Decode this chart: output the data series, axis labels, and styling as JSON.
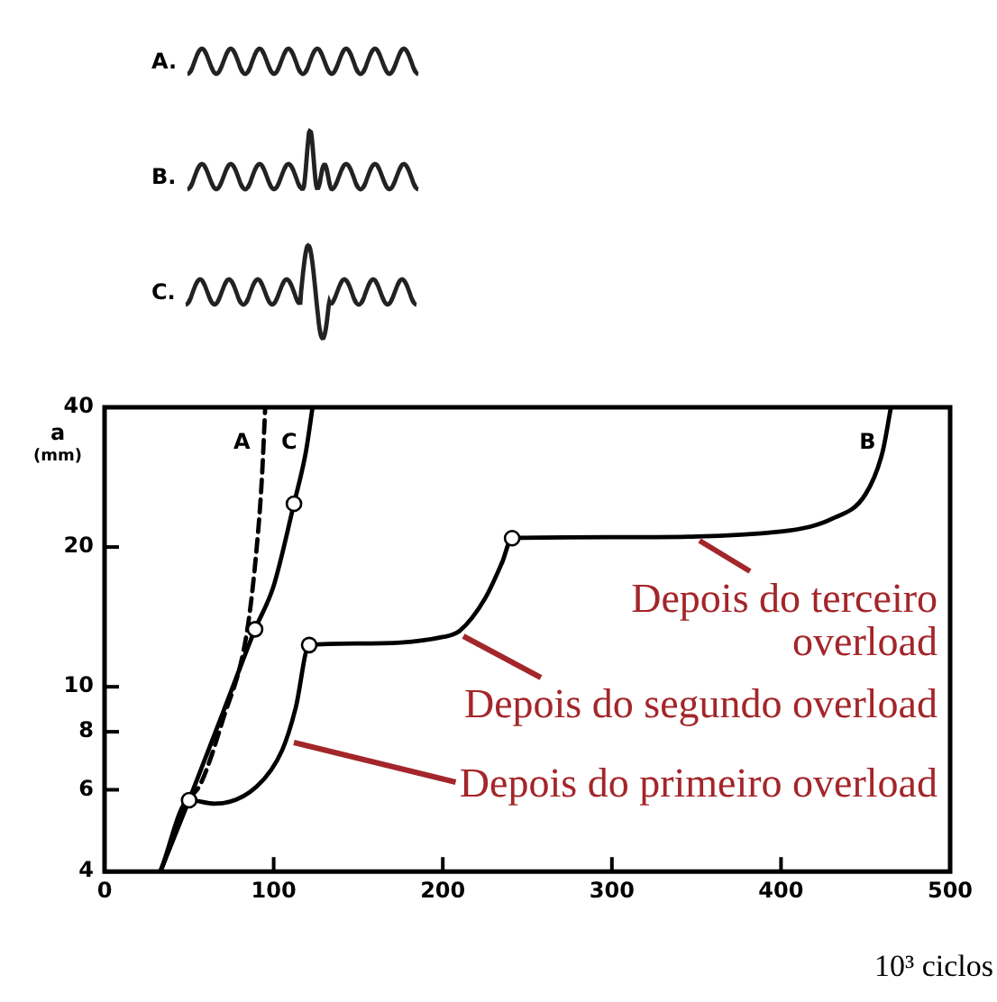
{
  "chart_data": {
    "type": "line",
    "xlabel": "10³ ciclos",
    "ylabel": "a (mm)",
    "log": "y",
    "xlim": [
      0,
      500
    ],
    "xticks": [
      0,
      100,
      200,
      300,
      400,
      500
    ],
    "ylim": [
      4,
      40
    ],
    "yticks": [
      4,
      6,
      8,
      10,
      20,
      40
    ],
    "grid": false,
    "legend": false,
    "marker": "none",
    "series": [
      {
        "name": "A",
        "color": "#000000",
        "line_style": "dashed",
        "x": [
          33,
          50,
          57,
          70,
          84,
          90,
          93,
          95
        ],
        "values": [
          4,
          5.7,
          6.2,
          8.5,
          13,
          20,
          28,
          40
        ]
      },
      {
        "name": "B",
        "color": "#000000",
        "line_style": "solid",
        "x": [
          33,
          50,
          65,
          90,
          105,
          113,
          121,
          150,
          200,
          210,
          225,
          235,
          241,
          300,
          400,
          430,
          450,
          460,
          465
        ],
        "values": [
          4,
          5.7,
          5.6,
          6.1,
          7.3,
          9,
          12.3,
          12.4,
          12.8,
          13.2,
          15.5,
          18.5,
          20.9,
          21,
          21.6,
          23,
          26,
          32,
          40
        ]
      },
      {
        "name": "C",
        "color": "#000000",
        "line_style": "solid",
        "x": [
          33,
          50,
          70,
          89,
          100,
          112,
          119,
          123
        ],
        "values": [
          4,
          5.7,
          8.8,
          13.3,
          16.5,
          24.8,
          32,
          40
        ]
      },
      {
        "type": "scatter",
        "marker": "circle",
        "color": "#ffffff",
        "x": [
          50,
          89,
          112,
          121,
          241
        ],
        "values": [
          5.7,
          13.3,
          24.8,
          12.3,
          20.9
        ]
      }
    ],
    "annotations": [
      "A.",
      "B.",
      "C.",
      {
        "text": "Depois do terceiro overload",
        "x": 350,
        "y": 21.3
      },
      {
        "text": "Depois do segundo overload",
        "x": 210,
        "y": 13.2
      },
      {
        "text": "Depois do primeiro overload",
        "x": 110,
        "y": 7.8
      }
    ]
  }
}
